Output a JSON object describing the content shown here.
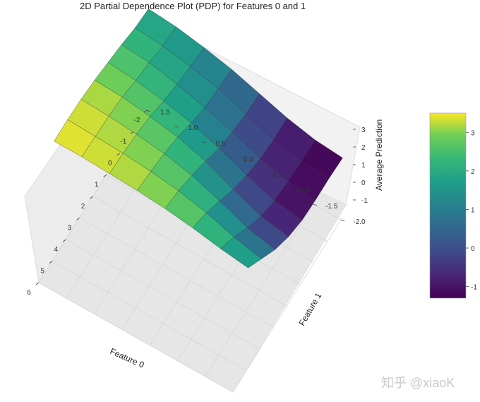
{
  "chart_data": {
    "type": "surface3d",
    "title": "2D Partial Dependence Plot (PDP) for Features 0 and 1",
    "xlabel": "Feature 0",
    "ylabel": "Feature 1",
    "zlabel": "Average Prediction",
    "x_ticks": [
      "6",
      "5",
      "4",
      "3",
      "2",
      "1",
      "0",
      "-1",
      "-2"
    ],
    "y_ticks": [
      "-2.0",
      "-1.5",
      "-1.0",
      "-0.5",
      "0.0",
      "0.5",
      "1.0",
      "1.5"
    ],
    "z_ticks": [
      "3",
      "2",
      "1",
      "0",
      "-1"
    ],
    "xlim": [
      -2,
      6
    ],
    "ylim": [
      -2.0,
      1.5
    ],
    "zlim": [
      -1.5,
      3.5
    ],
    "x": [
      5.5,
      4.5,
      3.5,
      2.5,
      1.5,
      0.5,
      -0.5,
      -1.5
    ],
    "y": [
      1.5,
      1.0,
      0.5,
      0.0,
      -0.5,
      -1.0,
      -1.5,
      -2.0
    ],
    "z": [
      [
        3.4,
        3.4,
        3.3,
        3.1,
        2.8,
        2.5,
        2.1,
        1.9
      ],
      [
        3.4,
        3.3,
        3.2,
        3.0,
        2.6,
        2.3,
        1.9,
        1.7
      ],
      [
        3.3,
        3.2,
        3.0,
        2.7,
        2.2,
        1.8,
        1.5,
        1.3
      ],
      [
        3.2,
        3.0,
        2.7,
        2.3,
        1.7,
        1.2,
        1.0,
        0.8
      ],
      [
        3.0,
        2.7,
        2.2,
        1.6,
        0.9,
        0.5,
        0.2,
        0.1
      ],
      [
        2.7,
        2.2,
        1.4,
        0.6,
        0.0,
        -0.4,
        -0.6,
        -0.6
      ],
      [
        2.3,
        1.5,
        0.5,
        -0.3,
        -0.8,
        -1.0,
        -1.1,
        -1.1
      ],
      [
        2.0,
        1.0,
        0.0,
        -0.7,
        -1.1,
        -1.2,
        -1.2,
        -1.3
      ]
    ],
    "colormap": "viridis",
    "colorbar": {
      "ticks": [
        "3",
        "2",
        "1",
        "0",
        "-1"
      ],
      "range": [
        -1.3,
        3.5
      ]
    },
    "grid": true
  },
  "watermark": "知乎 @xiaoK"
}
